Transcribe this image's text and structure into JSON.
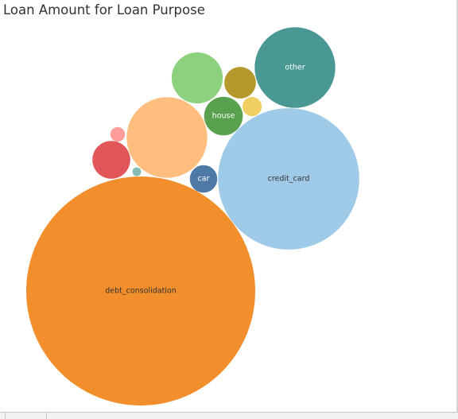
{
  "chart_data": {
    "type": "bubble",
    "title": "Loan Amount for Loan Purpose",
    "bubbles": [
      {
        "category": "debt_consolidation",
        "label": "debt_consolidation",
        "color": "#F28E2B",
        "label_color": "#333333",
        "relative_size": 1.0
      },
      {
        "category": "credit_card",
        "label": "credit_card",
        "color": "#A0CBE8",
        "label_color": "#333333",
        "relative_size": 0.381
      },
      {
        "category": "other",
        "label": "other",
        "color": "#499894",
        "label_color": "#ffffff",
        "relative_size": 0.124
      },
      {
        "category": "",
        "label": "",
        "color": "#FFBE7D",
        "label_color": "#333333",
        "relative_size": 0.124
      },
      {
        "category": "",
        "label": "",
        "color": "#8CD17D",
        "label_color": "#333333",
        "relative_size": 0.0496
      },
      {
        "category": "house",
        "label": "house",
        "color": "#59A14F",
        "label_color": "#ffffff",
        "relative_size": 0.0284
      },
      {
        "category": "",
        "label": "",
        "color": "#E15759",
        "label_color": "#ffffff",
        "relative_size": 0.0273
      },
      {
        "category": "",
        "label": "",
        "color": "#B6992D",
        "label_color": "#ffffff",
        "relative_size": 0.0191
      },
      {
        "category": "car",
        "label": "car",
        "color": "#4E79A7",
        "label_color": "#ffffff",
        "relative_size": 0.0145
      },
      {
        "category": "",
        "label": "",
        "color": "#F1CE63",
        "label_color": "#333333",
        "relative_size": 0.0071
      },
      {
        "category": "",
        "label": "",
        "color": "#FF9D9A",
        "label_color": "#333333",
        "relative_size": 0.0041
      },
      {
        "category": "",
        "label": "",
        "color": "#86BCB6",
        "label_color": "#333333",
        "relative_size": 0.0014
      }
    ]
  }
}
